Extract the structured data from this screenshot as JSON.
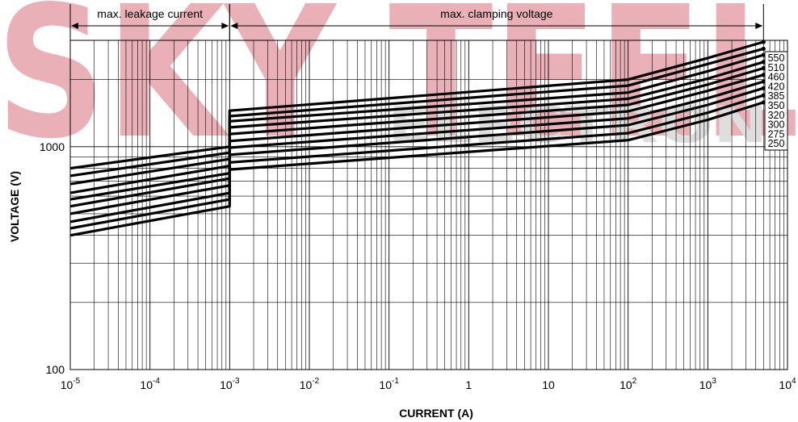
{
  "watermark": {
    "top_text": "SKY TEEL",
    "bottom_text": "ELECTRONI",
    "colors": {
      "sky": "#e7a3ab",
      "teel": "#cfcfcf",
      "electro": "#d9d9d9"
    }
  },
  "chart_data": {
    "type": "line",
    "title": "",
    "xlabel": "CURRENT (A)",
    "ylabel": "VOLTAGE (V)",
    "x_scale": "log",
    "y_scale": "log",
    "xlim": [
      1e-05,
      10000
    ],
    "ylim": [
      100,
      3000
    ],
    "grid": true,
    "x_ticks": [
      {
        "value": 1e-05,
        "base": "10",
        "exp": "-5"
      },
      {
        "value": 0.0001,
        "base": "10",
        "exp": "-4"
      },
      {
        "value": 0.001,
        "base": "10",
        "exp": "-3"
      },
      {
        "value": 0.01,
        "base": "10",
        "exp": "-2"
      },
      {
        "value": 0.1,
        "base": "10",
        "exp": "-1"
      },
      {
        "value": 1,
        "base": "1",
        "exp": ""
      },
      {
        "value": 10,
        "base": "10",
        "exp": ""
      },
      {
        "value": 100,
        "base": "10",
        "exp": "2"
      },
      {
        "value": 1000,
        "base": "10",
        "exp": "3"
      },
      {
        "value": 10000,
        "base": "10",
        "exp": "4"
      }
    ],
    "y_ticks": [
      {
        "value": 100,
        "label": "100"
      },
      {
        "value": 1000,
        "label": "1000"
      }
    ],
    "regions": [
      {
        "label": "max. leakage current",
        "x_start": 1e-05,
        "x_end": 0.001
      },
      {
        "label": "max. clamping voltage",
        "x_start": 0.001,
        "x_end": 5000
      }
    ],
    "legend_placement": "right",
    "series": [
      {
        "name": "550",
        "x": [
          1e-05,
          0.001,
          0.001,
          100,
          1000,
          5000
        ],
        "y": [
          800,
          1000,
          1450,
          2000,
          2500,
          2950
        ]
      },
      {
        "name": "510",
        "x": [
          1e-05,
          0.001,
          0.001,
          100,
          1000,
          5000
        ],
        "y": [
          740,
          940,
          1370,
          1880,
          2350,
          2750
        ]
      },
      {
        "name": "460",
        "x": [
          1e-05,
          0.001,
          0.001,
          100,
          1000,
          5000
        ],
        "y": [
          680,
          880,
          1300,
          1750,
          2180,
          2580
        ]
      },
      {
        "name": "420",
        "x": [
          1e-05,
          0.001,
          0.001,
          100,
          1000,
          5000
        ],
        "y": [
          620,
          820,
          1220,
          1640,
          2020,
          2400
        ]
      },
      {
        "name": "385",
        "x": [
          1e-05,
          0.001,
          0.001,
          100,
          1000,
          5000
        ],
        "y": [
          580,
          760,
          1140,
          1540,
          1900,
          2250
        ]
      },
      {
        "name": "350",
        "x": [
          1e-05,
          0.001,
          0.001,
          100,
          1000,
          5000
        ],
        "y": [
          540,
          720,
          1060,
          1440,
          1780,
          2100
        ]
      },
      {
        "name": "320",
        "x": [
          1e-05,
          0.001,
          0.001,
          100,
          1000,
          5000
        ],
        "y": [
          500,
          670,
          990,
          1340,
          1650,
          1960
        ]
      },
      {
        "name": "300",
        "x": [
          1e-05,
          0.001,
          0.001,
          100,
          1000,
          5000
        ],
        "y": [
          460,
          620,
          920,
          1250,
          1540,
          1830
        ]
      },
      {
        "name": "275",
        "x": [
          1e-05,
          0.001,
          0.001,
          100,
          1000,
          5000
        ],
        "y": [
          430,
          580,
          850,
          1150,
          1420,
          1700
        ]
      },
      {
        "name": "250",
        "x": [
          1e-05,
          0.001,
          0.001,
          100,
          1000,
          5000
        ],
        "y": [
          400,
          540,
          790,
          1070,
          1320,
          1580
        ]
      }
    ]
  }
}
